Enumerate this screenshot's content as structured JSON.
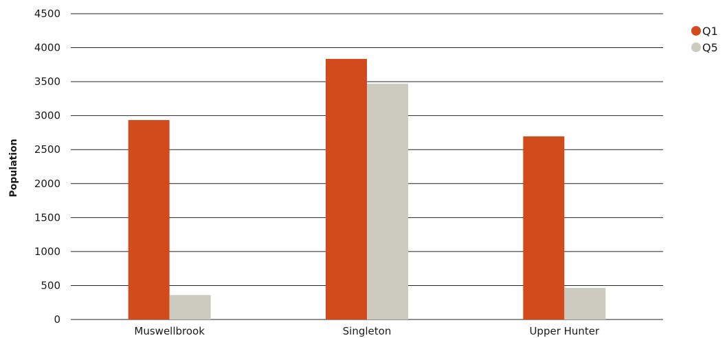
{
  "chart_data": {
    "type": "bar",
    "categories": [
      "Muswellbrook",
      "Singleton",
      "Upper Hunter"
    ],
    "series": [
      {
        "name": "Q1",
        "values": [
          2935,
          3835,
          2695
        ],
        "color": "#d24b1c"
      },
      {
        "name": "Q5",
        "values": [
          360,
          3470,
          465
        ],
        "color": "#cdcbc0"
      }
    ],
    "title": "",
    "xlabel": "",
    "ylabel": "Population",
    "ylim": [
      0,
      4500
    ],
    "yticks": [
      "0",
      "500",
      "1000",
      "1500",
      "2000",
      "2500",
      "3000",
      "3500",
      "4000",
      "4500"
    ],
    "grid": true,
    "legend_position": "top-right"
  }
}
